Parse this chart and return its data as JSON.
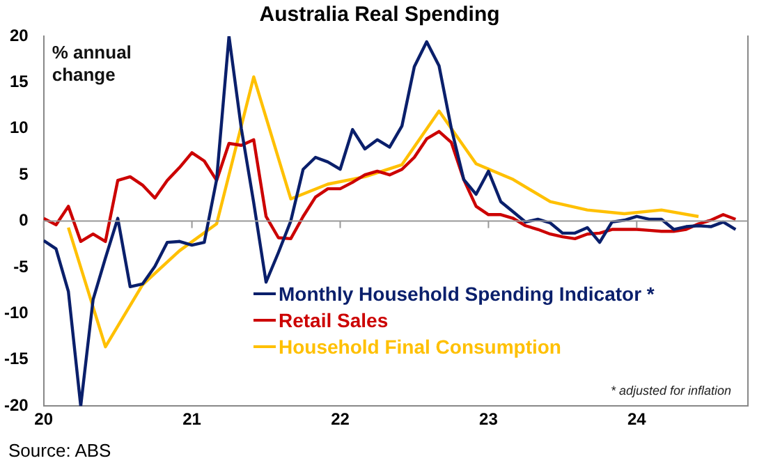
{
  "chart_data": {
    "type": "line",
    "title": "Australia Real Spending",
    "ylabel": "% annual change",
    "annotations": [
      "* adjusted for inflation",
      "Source: ABS"
    ],
    "xlim": [
      "2020-01",
      "2024-10"
    ],
    "xticks": [
      {
        "value": "2020-01",
        "label": "20"
      },
      {
        "value": "2021-01",
        "label": "21"
      },
      {
        "value": "2022-01",
        "label": "22"
      },
      {
        "value": "2023-01",
        "label": "23"
      },
      {
        "value": "2024-01",
        "label": "24"
      }
    ],
    "ylim": [
      -20,
      20
    ],
    "yticks": [
      -20,
      -15,
      -10,
      -5,
      0,
      5,
      10,
      15,
      20
    ],
    "grid": false,
    "legend": "bottom",
    "marker": "none",
    "line_style": "solid",
    "ref_lines": [
      {
        "axis": "y",
        "value": 0,
        "color": "#999999"
      }
    ],
    "series": [
      {
        "name": "Monthly Household Spending Indicator *",
        "color": "#0a1f6b",
        "x": [
          "2020-01",
          "2020-02",
          "2020-03",
          "2020-04",
          "2020-05",
          "2020-06",
          "2020-07",
          "2020-08",
          "2020-09",
          "2020-10",
          "2020-11",
          "2020-12",
          "2021-01",
          "2021-02",
          "2021-03",
          "2021-04",
          "2021-05",
          "2021-06",
          "2021-07",
          "2021-08",
          "2021-09",
          "2021-10",
          "2021-11",
          "2021-12",
          "2022-01",
          "2022-02",
          "2022-03",
          "2022-04",
          "2022-05",
          "2022-06",
          "2022-07",
          "2022-08",
          "2022-09",
          "2022-10",
          "2022-11",
          "2022-12",
          "2023-01",
          "2023-02",
          "2023-03",
          "2023-04",
          "2023-05",
          "2023-06",
          "2023-07",
          "2023-08",
          "2023-09",
          "2023-10",
          "2023-11",
          "2023-12",
          "2024-01",
          "2024-02",
          "2024-03",
          "2024-04",
          "2024-05",
          "2024-06",
          "2024-07",
          "2024-08",
          "2024-09"
        ],
        "values": [
          -2.1,
          -3.0,
          -7.6,
          -20,
          -8.5,
          -4,
          0.3,
          -7.1,
          -6.8,
          -4.9,
          -2.3,
          -2.2,
          -2.6,
          -2.3,
          4.5,
          20,
          10,
          2,
          -6.6,
          -3.4,
          0,
          5.6,
          6.9,
          6.4,
          5.6,
          9.9,
          7.8,
          8.8,
          8.0,
          10.3,
          16.7,
          19.4,
          16.8,
          10,
          4.5,
          2.9,
          5.4,
          2.1,
          1.0,
          -0.1,
          0.2,
          -0.2,
          -1.3,
          -1.3,
          -0.7,
          -2.3,
          -0.1,
          0.1,
          0.5,
          0.2,
          0.2,
          -0.9,
          -0.6,
          -0.5,
          -0.6,
          -0.1,
          -0.9
        ]
      },
      {
        "name": "Retail Sales",
        "color": "#cc0000",
        "x": [
          "2020-01",
          "2020-02",
          "2020-03",
          "2020-04",
          "2020-05",
          "2020-06",
          "2020-07",
          "2020-08",
          "2020-09",
          "2020-10",
          "2020-11",
          "2020-12",
          "2021-01",
          "2021-02",
          "2021-03",
          "2021-04",
          "2021-05",
          "2021-06",
          "2021-07",
          "2021-08",
          "2021-09",
          "2021-10",
          "2021-11",
          "2021-12",
          "2022-01",
          "2022-02",
          "2022-03",
          "2022-04",
          "2022-05",
          "2022-06",
          "2022-07",
          "2022-08",
          "2022-09",
          "2022-10",
          "2022-11",
          "2022-12",
          "2023-01",
          "2023-02",
          "2023-03",
          "2023-04",
          "2023-05",
          "2023-06",
          "2023-07",
          "2023-08",
          "2023-09",
          "2023-10",
          "2023-11",
          "2023-12",
          "2024-01",
          "2024-02",
          "2024-03",
          "2024-04",
          "2024-05",
          "2024-06",
          "2024-07",
          "2024-08",
          "2024-09"
        ],
        "values": [
          0.3,
          -0.4,
          1.6,
          -2.2,
          -1.4,
          -2.2,
          4.4,
          4.8,
          3.9,
          2.5,
          4.4,
          5.8,
          7.4,
          6.5,
          4.4,
          8.4,
          8.2,
          8.8,
          0.5,
          -1.8,
          -1.9,
          0.5,
          2.6,
          3.5,
          3.5,
          4.2,
          5.0,
          5.4,
          5.0,
          5.6,
          6.9,
          8.9,
          9.7,
          8.5,
          4.5,
          1.6,
          0.7,
          0.7,
          0.3,
          -0.5,
          -0.9,
          -1.4,
          -1.7,
          -1.9,
          -1.4,
          -1.3,
          -0.9,
          -0.9,
          -0.9,
          -1.0,
          -1.1,
          -1.1,
          -0.9,
          -0.3,
          0.1,
          0.7,
          0.2
        ]
      },
      {
        "name": "Household Final Consumption",
        "color": "#ffc000",
        "x": [
          "2020-03",
          "2020-06",
          "2020-09",
          "2020-12",
          "2021-03",
          "2021-06",
          "2021-09",
          "2021-12",
          "2022-03",
          "2022-06",
          "2022-09",
          "2022-12",
          "2023-03",
          "2023-06",
          "2023-09",
          "2023-12",
          "2024-03",
          "2024-06"
        ],
        "values": [
          -0.7,
          -13.6,
          -6.9,
          -3.2,
          -0.3,
          15.6,
          2.4,
          4.0,
          4.8,
          6.1,
          11.9,
          6.2,
          4.5,
          2.1,
          1.2,
          0.8,
          1.2,
          0.5
        ]
      }
    ]
  }
}
